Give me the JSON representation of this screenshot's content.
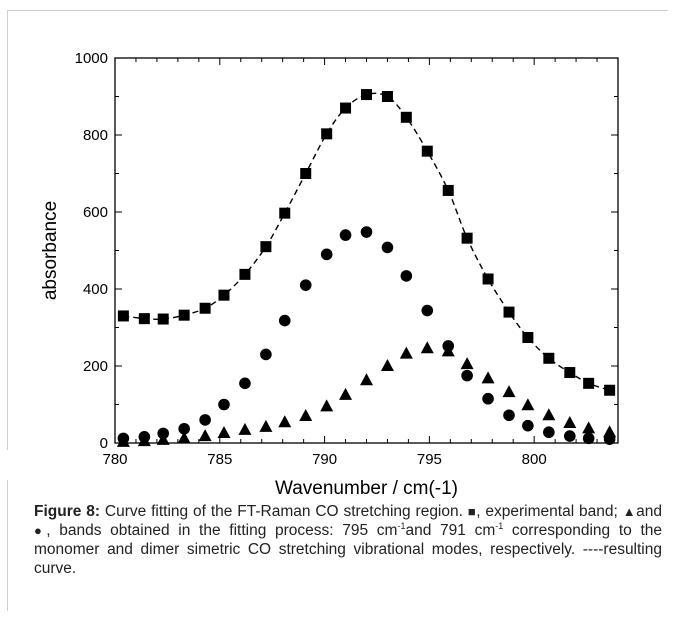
{
  "chart_data": {
    "type": "scatter",
    "xlabel": "Wavenumber / cm(-1)",
    "ylabel": "absorbance",
    "xlim": [
      780,
      804
    ],
    "ylim": [
      0,
      1000
    ],
    "xticks": [
      780,
      785,
      790,
      795,
      800
    ],
    "yticks": [
      0,
      200,
      400,
      600,
      800,
      1000
    ],
    "grid": false,
    "series": [
      {
        "marker": "square",
        "x": [
          780.4,
          781.4,
          782.3,
          783.3,
          784.3,
          785.2,
          786.2,
          787.2,
          788.1,
          789.1,
          790.1,
          791.0,
          792.0,
          793.0,
          793.9,
          794.9,
          795.9,
          796.8,
          797.8,
          798.8,
          799.7,
          800.7,
          801.7,
          802.6,
          803.6
        ],
        "y": [
          330,
          323,
          322,
          332,
          350,
          384,
          438,
          510,
          597,
          700,
          803,
          870,
          905,
          900,
          846,
          758,
          656,
          532,
          426,
          340,
          274,
          220,
          183,
          155,
          137
        ]
      },
      {
        "marker": "circle",
        "x": [
          780.4,
          781.4,
          782.3,
          783.3,
          784.3,
          785.2,
          786.2,
          787.2,
          788.1,
          789.1,
          790.1,
          791.0,
          792.0,
          793.0,
          793.9,
          794.9,
          795.9,
          796.8,
          797.8,
          798.8,
          799.7,
          800.7,
          801.7,
          802.6,
          803.6
        ],
        "y": [
          12,
          16,
          25,
          37,
          60,
          100,
          155,
          230,
          318,
          410,
          490,
          540,
          548,
          508,
          434,
          344,
          252,
          175,
          115,
          72,
          45,
          28,
          18,
          12,
          10
        ]
      },
      {
        "marker": "triangle",
        "x": [
          780.4,
          781.4,
          782.3,
          783.3,
          784.3,
          785.2,
          786.2,
          787.2,
          788.1,
          789.1,
          790.1,
          791.0,
          792.0,
          793.0,
          793.9,
          794.9,
          795.9,
          796.8,
          797.8,
          798.8,
          799.7,
          800.7,
          801.7,
          802.6,
          803.6
        ],
        "y": [
          3,
          5,
          8,
          12,
          18,
          26,
          34,
          42,
          54,
          70,
          95,
          125,
          163,
          200,
          232,
          246,
          238,
          205,
          168,
          132,
          98,
          72,
          52,
          38,
          28
        ]
      },
      {
        "style": "dashed-line",
        "x": [
          780.4,
          781.4,
          782.3,
          783.3,
          784.3,
          785.2,
          786.2,
          787.2,
          788.1,
          789.1,
          790.1,
          791.0,
          792.0,
          793.0,
          793.9,
          794.9,
          795.9,
          796.8,
          797.8,
          798.8,
          799.7,
          800.7,
          801.7,
          802.6,
          803.6
        ],
        "y": [
          330,
          323,
          322,
          332,
          350,
          384,
          438,
          510,
          597,
          700,
          803,
          870,
          905,
          900,
          846,
          758,
          656,
          532,
          426,
          340,
          274,
          220,
          183,
          155,
          137
        ]
      }
    ]
  },
  "caption": {
    "label": "Figure 8:",
    "text1": " Curve fitting of the FT-Raman CO stretching region. ",
    "sym_square": "■",
    "text2": ", experimental band; ",
    "sym_triangle": "▲",
    "text3": "and ",
    "sym_circle": "●",
    "text4": ", bands obtained in the fitting process: 795 cm",
    "sup1": "-1",
    "text5": "and 791 cm",
    "sup2": "-1",
    "text6": " corresponding to the monomer and dimer simetric CO stretching vibrational modes, respectively. ----resulting curve."
  }
}
